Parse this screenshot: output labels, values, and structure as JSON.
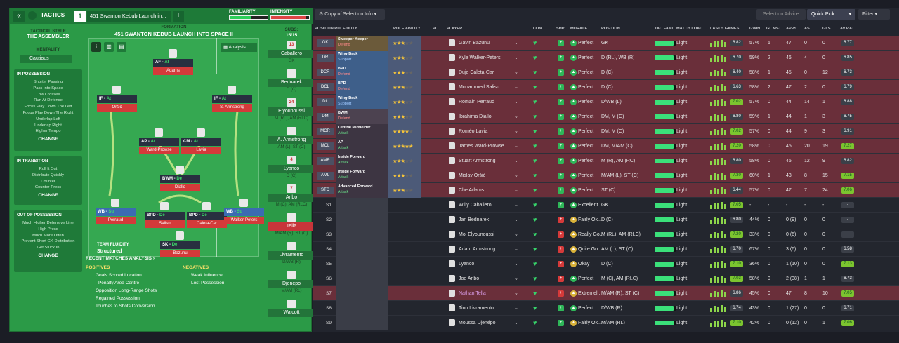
{
  "tactics": {
    "header": {
      "back": "«",
      "title": "TACTICS",
      "slot": "1",
      "name": "451 Swanton Kebub Launch in...",
      "add": "+",
      "familiarity_label": "FAMILIARITY",
      "intensity_label": "INTENSITY",
      "familiarity_level": 0.55,
      "intensity_level": 0.9
    },
    "formation_label": "FORMATION",
    "formation_name": "451 SWANTON KEBUB LAUNCH INTO SPACE II",
    "analysis_label": "Analysis",
    "subs_label": "SUBS:",
    "subs_count": "15/15",
    "subs_badge": "13",
    "style_label": "TACTICAL STYLE",
    "style_value": "THE ASSEMBLER",
    "mentality_label": "MENTALITY",
    "mentality_value": "Cautious",
    "in_possession": {
      "title": "IN POSSESSION",
      "items": [
        "Shorter Passing",
        "Pass Into Space",
        "Low Crosses",
        "Run At Defence",
        "Focus Play Down The Left",
        "Focus Play Down The Right",
        "Underlap Left",
        "Underlap Right",
        "Higher Tempo"
      ],
      "change": "CHANGE"
    },
    "in_transition": {
      "title": "IN TRANSITION",
      "items": [
        "Roll It Out",
        "Distribute Quickly",
        "Counter",
        "Counter-Press"
      ],
      "change": "CHANGE"
    },
    "out_of_possession": {
      "title": "OUT OF POSSESSION",
      "items": [
        "Much Higher Defensive Line",
        "High Press",
        "Much More Often",
        "Prevent Short GK Distribution",
        "Get Stuck In"
      ],
      "change": "CHANGE"
    },
    "fluidity_label": "TEAM FLUIDITY",
    "fluidity_value": "Structured",
    "positions": [
      {
        "role": "AF",
        "duty": "At",
        "name": "Adams"
      },
      {
        "role": "IF",
        "duty": "At",
        "name": "Oršić"
      },
      {
        "role": "IF",
        "duty": "At",
        "name": "S. Armstrong"
      },
      {
        "role": "AP",
        "duty": "At",
        "name": "Ward-Prowse"
      },
      {
        "role": "CM",
        "duty": "At",
        "name": "Lavia"
      },
      {
        "role": "BWM",
        "duty": "De",
        "name": "Diallo"
      },
      {
        "role": "WB",
        "duty": "Su",
        "name": "Perraud"
      },
      {
        "role": "BPD",
        "duty": "De",
        "name": "Salisu"
      },
      {
        "role": "BPD",
        "duty": "De",
        "name": "Caleta-Car"
      },
      {
        "role": "WB",
        "duty": "Su",
        "name": "Walker-Peters"
      },
      {
        "role": "SK",
        "duty": "De",
        "name": "Bazunu"
      }
    ],
    "subs": [
      {
        "no": "13",
        "name": "Caballero",
        "pos": "GK"
      },
      {
        "no": "",
        "name": "Bednarek",
        "pos": "D (C)"
      },
      {
        "no": "24",
        "name": "Elyounoussi",
        "pos": "M (RL), AM (RLC)"
      },
      {
        "no": "",
        "name": "A. Armstrong",
        "pos": "AM (L), ST (C)"
      },
      {
        "no": "4",
        "name": "Lyanco",
        "pos": "D (C)"
      },
      {
        "no": "7",
        "name": "Aribo",
        "pos": "M (C), AM (RLC)"
      },
      {
        "no": "",
        "name": "Tella",
        "pos": "M/AM (R), ST (C)"
      },
      {
        "no": "",
        "name": "Livramento",
        "pos": "D/WB (R)"
      },
      {
        "no": "",
        "name": "Djenépo",
        "pos": "M/AM (RL)"
      },
      {
        "no": "",
        "name": "Walcott",
        "pos": ""
      }
    ],
    "recent": {
      "title": "RECENT MATCHES ANALYSIS ›",
      "positives_label": "POSITIVES",
      "positives": [
        "Goals Scored Location",
        "- Penalty Area Centre",
        "Opposition Long-Range Shots",
        "Regained Possession",
        "Touches to Shots Conversion"
      ],
      "negatives_label": "NEGATIVES",
      "negatives": [
        "Weak Influence",
        "Lost Possession"
      ]
    }
  },
  "squad": {
    "toolbar": {
      "view": "Copy of Selection Info",
      "advice": "Selection Advice",
      "quick_pick": "Quick Pick",
      "filter": "Filter"
    },
    "columns": [
      "POSITION/ROLE/DUTY",
      "ROLE ABILITY",
      "PI",
      "PLAYER",
      "CON",
      "SHP",
      "MORALE",
      "POSITION",
      "TAC FAMI",
      "MATCH LOAD",
      "LAST 5 GAMES",
      "GWIN",
      "GL MST",
      "APPS",
      "AST",
      "GLS",
      "AV RAT"
    ],
    "starters": [
      {
        "slot": "GK",
        "role": "Sweeper Keeper",
        "duty": "Defend",
        "stars": 3,
        "player": "Gavin Bazunu",
        "morale": "Perfect",
        "position": "GK",
        "load": "Light",
        "rating": "6.82",
        "gwin": "57%",
        "glmst": "5",
        "apps": "47",
        "ast": "0",
        "gls": "0",
        "avr": "6.77"
      },
      {
        "slot": "DR",
        "role": "Wing-Back",
        "duty": "Support",
        "stars": 3,
        "player": "Kyle Walker-Peters",
        "morale": "Perfect",
        "position": "D (RL), WB (R)",
        "load": "Light",
        "rating": "6.70",
        "gwin": "59%",
        "glmst": "2",
        "apps": "46",
        "ast": "4",
        "gls": "0",
        "avr": "6.85"
      },
      {
        "slot": "DCR",
        "role": "BPD",
        "duty": "Defend",
        "stars": 3,
        "player": "Duje Caleta-Car",
        "morale": "Perfect",
        "position": "D (C)",
        "load": "Light",
        "rating": "6.40",
        "gwin": "58%",
        "glmst": "1",
        "apps": "45",
        "ast": "0",
        "gls": "12",
        "avr": "6.73"
      },
      {
        "slot": "DCL",
        "role": "BPD",
        "duty": "Defend",
        "stars": 3,
        "player": "Mohammed Salisu",
        "morale": "Perfect",
        "position": "D (C)",
        "load": "Light",
        "rating": "6.63",
        "gwin": "58%",
        "glmst": "2",
        "apps": "47",
        "ast": "2",
        "gls": "0",
        "avr": "6.79"
      },
      {
        "slot": "DL",
        "role": "Wing-Back",
        "duty": "Support",
        "stars": 3,
        "player": "Romain Perraud",
        "morale": "Perfect",
        "position": "D/WB (L)",
        "load": "Light",
        "rating": "7.02",
        "gwin": "57%",
        "glmst": "0",
        "apps": "44",
        "ast": "14",
        "gls": "1",
        "avr": "6.88"
      },
      {
        "slot": "DM",
        "role": "BWM",
        "duty": "Defend",
        "stars": 3,
        "player": "Ibrahima Diallo",
        "morale": "Perfect",
        "position": "DM, M (C)",
        "load": "Light",
        "rating": "6.80",
        "gwin": "59%",
        "glmst": "1",
        "apps": "44",
        "ast": "1",
        "gls": "3",
        "avr": "6.75"
      },
      {
        "slot": "MCR",
        "role": "Central Midfielder",
        "duty": "Attack",
        "stars": 4,
        "player": "Roméo Lavia",
        "morale": "Perfect",
        "position": "DM, M (C)",
        "load": "Light",
        "rating": "7.02",
        "gwin": "57%",
        "glmst": "0",
        "apps": "44",
        "ast": "9",
        "gls": "3",
        "avr": "6.91"
      },
      {
        "slot": "MCL",
        "role": "AP",
        "duty": "Attack",
        "stars": 5,
        "player": "James Ward-Prowse",
        "morale": "Perfect",
        "position": "DM, M/AM (C)",
        "load": "Light",
        "rating": "7.20",
        "gwin": "58%",
        "glmst": "0",
        "apps": "45",
        "ast": "20",
        "gls": "19",
        "avr": "7.27"
      },
      {
        "slot": "AMR",
        "role": "Inside Forward",
        "duty": "Attack",
        "stars": 3,
        "player": "Stuart Armstrong",
        "morale": "Perfect",
        "position": "M (R), AM (RC)",
        "load": "Light",
        "rating": "6.80",
        "gwin": "58%",
        "glmst": "0",
        "apps": "45",
        "ast": "12",
        "gls": "9",
        "avr": "6.82"
      },
      {
        "slot": "AML",
        "role": "Inside Forward",
        "duty": "Attack",
        "stars": 3,
        "player": "Mislav Oršić",
        "morale": "Perfect",
        "position": "M/AM (L), ST (C)",
        "load": "Light",
        "rating": "7.30",
        "gwin": "60%",
        "glmst": "1",
        "apps": "43",
        "ast": "8",
        "gls": "15",
        "avr": "7.15"
      },
      {
        "slot": "STC",
        "role": "Advanced Forward",
        "duty": "Attack",
        "stars": 3,
        "player": "Che Adams",
        "morale": "Perfect",
        "position": "ST (C)",
        "load": "Light",
        "rating": "6.44",
        "gwin": "57%",
        "glmst": "0",
        "apps": "47",
        "ast": "7",
        "gls": "24",
        "avr": "7.06"
      }
    ],
    "subs": [
      {
        "slot": "S1",
        "player": "Willy Caballero",
        "morale": "Excellent",
        "position": "GK",
        "load": "Light",
        "rating": "7.05",
        "gwin": "-",
        "glmst": "-",
        "apps": "-",
        "ast": "-",
        "gls": "-",
        "avr": "-"
      },
      {
        "slot": "S2",
        "player": "Jan Bednarek",
        "morale": "Fairly Ok...",
        "position": "D (C)",
        "load": "Light",
        "rating": "6.80",
        "gwin": "44%",
        "glmst": "0",
        "apps": "0 (9)",
        "ast": "0",
        "gls": "0",
        "avr": "-"
      },
      {
        "slot": "S3",
        "player": "Moi Elyounoussi",
        "morale": "Really Go...",
        "position": "M (RL), AM (RLC)",
        "load": "Light",
        "rating": "7.20",
        "gwin": "33%",
        "glmst": "0",
        "apps": "0 (6)",
        "ast": "0",
        "gls": "0",
        "avr": "-"
      },
      {
        "slot": "S4",
        "player": "Adam Armstrong",
        "morale": "Quite Go...",
        "position": "AM (L), ST (C)",
        "load": "Light",
        "rating": "6.70",
        "gwin": "67%",
        "glmst": "0",
        "apps": "3 (6)",
        "ast": "0",
        "gls": "0",
        "avr": "6.58"
      },
      {
        "slot": "S5",
        "player": "Lyanco",
        "morale": "Okay",
        "position": "D (C)",
        "load": "Light",
        "rating": "7.10",
        "gwin": "36%",
        "glmst": "0",
        "apps": "1 (10)",
        "ast": "0",
        "gls": "0",
        "avr": "7.13"
      },
      {
        "slot": "S6",
        "player": "Joe Aribo",
        "morale": "Perfect",
        "position": "M (C), AM (RLC)",
        "load": "Light",
        "rating": "7.03",
        "gwin": "58%",
        "glmst": "0",
        "apps": "2 (38)",
        "ast": "1",
        "gls": "1",
        "avr": "6.73"
      },
      {
        "slot": "S7",
        "player": "Nathan Tella",
        "morale": "Extremel...",
        "position": "M/AM (R), ST (C)",
        "load": "Light",
        "rating": "6.86",
        "gwin": "45%",
        "glmst": "0",
        "apps": "47",
        "ast": "8",
        "gls": "10",
        "avr": "7.05"
      },
      {
        "slot": "S8",
        "player": "Tino Livramento",
        "morale": "Perfect",
        "position": "D/WB (R)",
        "load": "Light",
        "rating": "6.74",
        "gwin": "43%",
        "glmst": "0",
        "apps": "1 (27)",
        "ast": "0",
        "gls": "0",
        "avr": "6.71"
      },
      {
        "slot": "S9",
        "player": "Moussa Djenépo",
        "morale": "Fairly Ok...",
        "position": "M/AM (RL)",
        "load": "Light",
        "rating": "7.10",
        "gwin": "42%",
        "glmst": "0",
        "apps": "0 (12)",
        "ast": "0",
        "gls": "1",
        "avr": "7.06"
      }
    ]
  }
}
